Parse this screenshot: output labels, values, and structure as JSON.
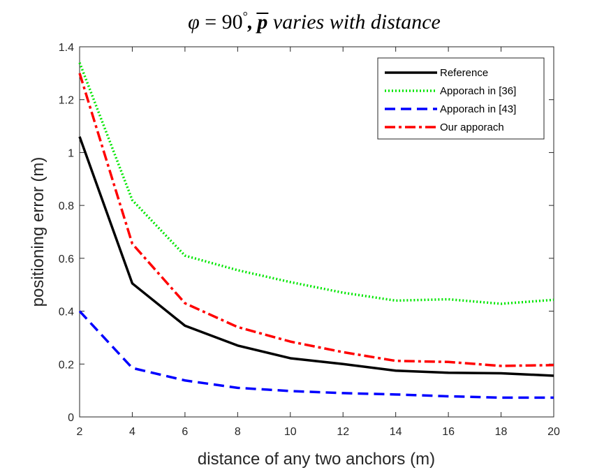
{
  "chart_data": {
    "type": "line",
    "title": "φ = 90°, p̄ varies with distance",
    "title_parts": {
      "phi": "φ",
      "eq": " = 90",
      "deg": "°",
      "comma": ",",
      "p": "p",
      "rest": " varies with distance"
    },
    "xlabel": "distance of any two anchors (m)",
    "ylabel": "positioning error (m)",
    "xlim": [
      2,
      20
    ],
    "ylim": [
      0,
      1.4
    ],
    "xticks": [
      2,
      4,
      6,
      8,
      10,
      12,
      14,
      16,
      18,
      20
    ],
    "yticks": [
      0,
      0.2,
      0.4,
      0.6,
      0.8,
      1,
      1.2,
      1.4
    ],
    "xtick_labels": [
      "2",
      "4",
      "6",
      "8",
      "10",
      "12",
      "14",
      "16",
      "18",
      "20"
    ],
    "ytick_labels": [
      "0",
      "0.2",
      "0.4",
      "0.6",
      "0.8",
      "1",
      "1.2",
      "1.4"
    ],
    "x": [
      2,
      4,
      6,
      8,
      10,
      12,
      14,
      16,
      18,
      20
    ],
    "grid": false,
    "legend_position": "top-right",
    "series": [
      {
        "name": "Reference",
        "color": "#000000",
        "style": "solid",
        "values": [
          1.06,
          0.505,
          0.345,
          0.27,
          0.222,
          0.2,
          0.175,
          0.167,
          0.165,
          0.156
        ]
      },
      {
        "name": "Apporach in [36]",
        "color": "#00e600",
        "style": "dotted",
        "values": [
          1.34,
          0.82,
          0.61,
          0.555,
          0.51,
          0.47,
          0.44,
          0.445,
          0.428,
          0.443
        ]
      },
      {
        "name": "Apporach in [43]",
        "color": "#0000ff",
        "style": "dashed",
        "values": [
          0.4,
          0.185,
          0.138,
          0.11,
          0.098,
          0.09,
          0.085,
          0.078,
          0.073,
          0.073
        ]
      },
      {
        "name": "Our apporach",
        "color": "#ff0000",
        "style": "dashdot",
        "values": [
          1.3,
          0.655,
          0.43,
          0.34,
          0.285,
          0.245,
          0.212,
          0.208,
          0.193,
          0.196
        ]
      }
    ]
  }
}
